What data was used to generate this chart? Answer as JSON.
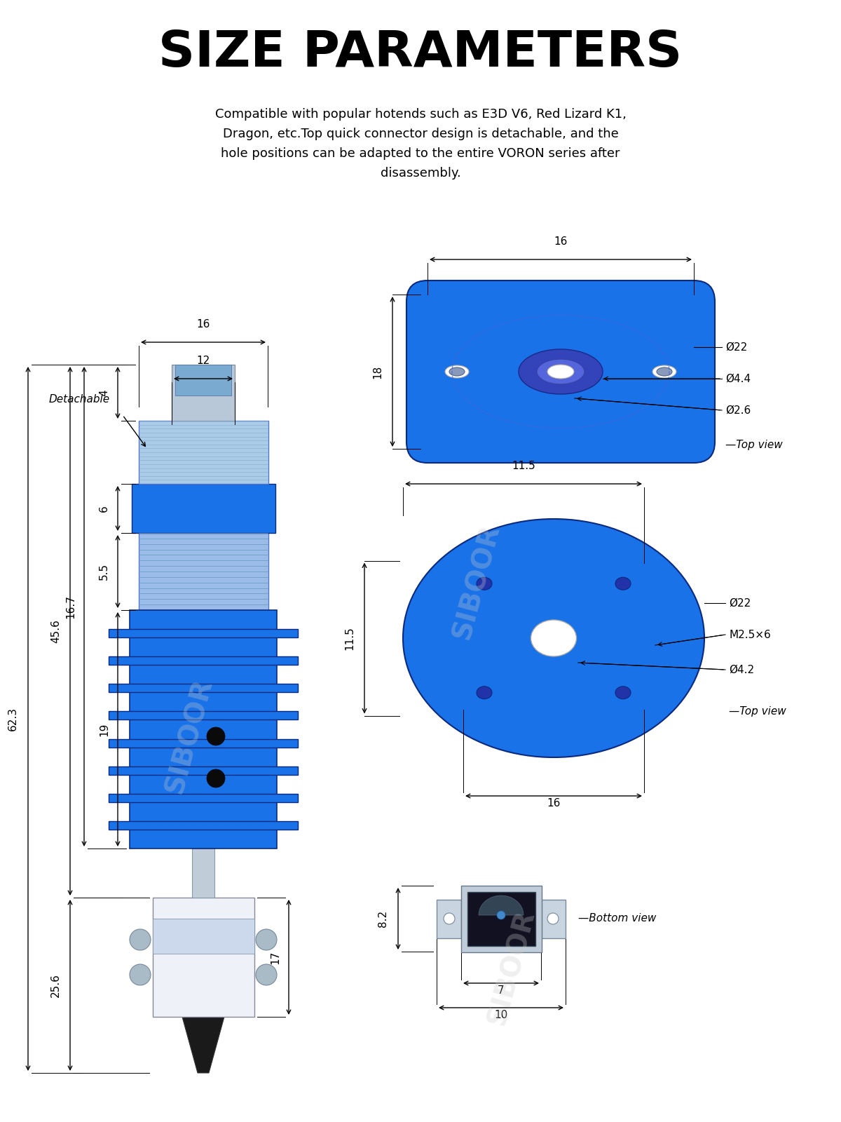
{
  "title": "SIZE PARAMETERS",
  "subtitle": "Compatible with popular hotends such as E3D V6, Red Lizard K1,\nDragon, etc.Top quick connector design is detachable, and the\nhole positions can be adapted to the entire VORON series after\ndisassembly.",
  "bg_color": "#ffffff",
  "text_color": "#000000",
  "blue_main": "#1a72e8",
  "blue_light": "#aaccff",
  "blue_dark": "#0a2a80",
  "blue_mid": "#3355cc",
  "watermark": "SIBOOR",
  "dims_right_top": {
    "dim_16": "16",
    "dim_18": "18",
    "dim_22a": "Ø22",
    "dim_4_4": "Ø4.4",
    "dim_2_6": "Ø2.6",
    "top_view": "Top view"
  },
  "dims_right_mid": {
    "dim_11_5_h": "11.5",
    "dim_11_5_v": "11.5",
    "dim_22b": "Ø22",
    "dim_m25x6": "M2.5×6",
    "dim_4_2": "Ø4.2",
    "top_view2": "Top view"
  },
  "dims_right_bot": {
    "dim_16b": "16",
    "dim_8_2": "8.2",
    "dim_7": "7",
    "dim_10": "10",
    "bottom_view": "Bottom view"
  }
}
